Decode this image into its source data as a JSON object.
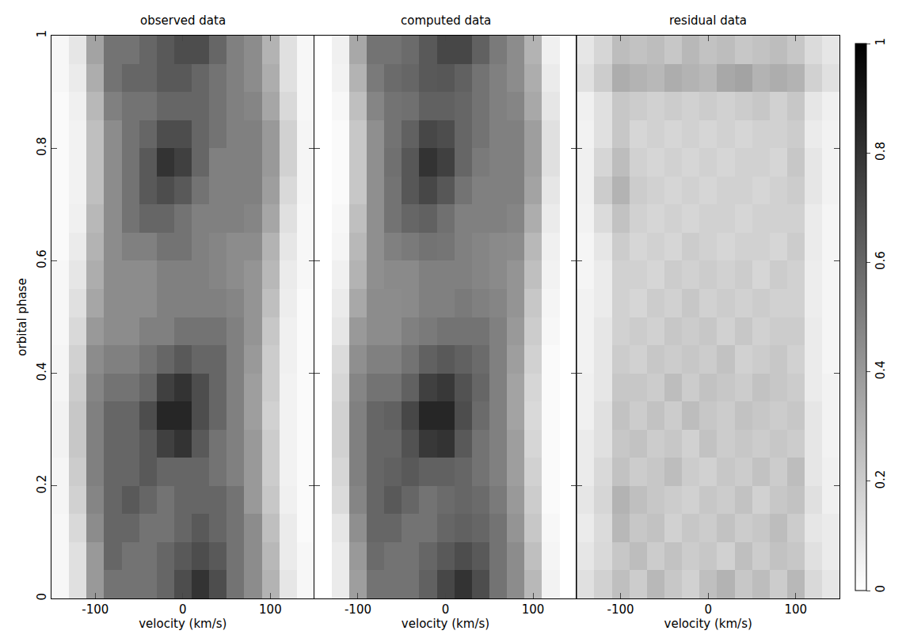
{
  "chart_data": [
    {
      "type": "heatmap",
      "title": "observed data",
      "x_label": "velocity (km/s)",
      "y_label": "orbital phase",
      "xlim": [
        -150,
        150
      ],
      "xticks": [
        -100,
        0,
        100
      ],
      "ylim": [
        0,
        1
      ],
      "yticks": [
        0,
        0.2,
        0.4,
        0.6,
        0.8,
        1
      ],
      "x": [
        -140,
        -120,
        -100,
        -80,
        -60,
        -40,
        -20,
        0,
        20,
        40,
        60,
        80,
        100,
        120,
        140
      ],
      "y": [
        0.025,
        0.075,
        0.125,
        0.175,
        0.225,
        0.275,
        0.325,
        0.375,
        0.425,
        0.475,
        0.525,
        0.575,
        0.625,
        0.675,
        0.725,
        0.775,
        0.825,
        0.875,
        0.925,
        0.975
      ],
      "z": [
        [
          0.03,
          0.12,
          0.4,
          0.55,
          0.55,
          0.55,
          0.6,
          0.7,
          0.8,
          0.7,
          0.55,
          0.45,
          0.3,
          0.1,
          0.03
        ],
        [
          0.03,
          0.12,
          0.4,
          0.6,
          0.55,
          0.55,
          0.6,
          0.65,
          0.7,
          0.65,
          0.55,
          0.45,
          0.28,
          0.08,
          0.03
        ],
        [
          0.03,
          0.15,
          0.45,
          0.6,
          0.6,
          0.55,
          0.55,
          0.6,
          0.65,
          0.6,
          0.55,
          0.45,
          0.25,
          0.08,
          0.02
        ],
        [
          0.04,
          0.18,
          0.48,
          0.6,
          0.65,
          0.6,
          0.55,
          0.6,
          0.6,
          0.6,
          0.55,
          0.4,
          0.22,
          0.06,
          0.02
        ],
        [
          0.04,
          0.2,
          0.5,
          0.6,
          0.6,
          0.65,
          0.6,
          0.6,
          0.6,
          0.55,
          0.5,
          0.4,
          0.2,
          0.05,
          0.02
        ],
        [
          0.05,
          0.22,
          0.5,
          0.6,
          0.6,
          0.65,
          0.75,
          0.8,
          0.65,
          0.55,
          0.5,
          0.4,
          0.2,
          0.05,
          0.02
        ],
        [
          0.05,
          0.22,
          0.5,
          0.6,
          0.6,
          0.7,
          0.85,
          0.85,
          0.7,
          0.6,
          0.5,
          0.38,
          0.18,
          0.05,
          0.02
        ],
        [
          0.04,
          0.2,
          0.48,
          0.55,
          0.55,
          0.6,
          0.75,
          0.8,
          0.7,
          0.6,
          0.5,
          0.38,
          0.2,
          0.05,
          0.02
        ],
        [
          0.04,
          0.18,
          0.45,
          0.5,
          0.5,
          0.55,
          0.6,
          0.65,
          0.6,
          0.6,
          0.5,
          0.4,
          0.2,
          0.06,
          0.02
        ],
        [
          0.03,
          0.15,
          0.4,
          0.45,
          0.45,
          0.5,
          0.5,
          0.55,
          0.55,
          0.55,
          0.5,
          0.42,
          0.22,
          0.06,
          0.02
        ],
        [
          0.03,
          0.12,
          0.35,
          0.45,
          0.45,
          0.45,
          0.5,
          0.5,
          0.5,
          0.5,
          0.48,
          0.42,
          0.25,
          0.07,
          0.02
        ],
        [
          0.03,
          0.1,
          0.32,
          0.45,
          0.45,
          0.45,
          0.5,
          0.5,
          0.5,
          0.48,
          0.45,
          0.42,
          0.28,
          0.08,
          0.03
        ],
        [
          0.02,
          0.08,
          0.3,
          0.45,
          0.5,
          0.5,
          0.55,
          0.55,
          0.5,
          0.48,
          0.45,
          0.45,
          0.3,
          0.1,
          0.03
        ],
        [
          0.02,
          0.06,
          0.28,
          0.45,
          0.55,
          0.6,
          0.6,
          0.55,
          0.5,
          0.5,
          0.5,
          0.48,
          0.35,
          0.12,
          0.03
        ],
        [
          0.02,
          0.05,
          0.25,
          0.45,
          0.55,
          0.65,
          0.7,
          0.65,
          0.55,
          0.5,
          0.5,
          0.5,
          0.38,
          0.15,
          0.04
        ],
        [
          0.02,
          0.05,
          0.25,
          0.45,
          0.55,
          0.65,
          0.8,
          0.75,
          0.6,
          0.5,
          0.5,
          0.5,
          0.4,
          0.18,
          0.04
        ],
        [
          0.02,
          0.05,
          0.25,
          0.45,
          0.55,
          0.6,
          0.7,
          0.7,
          0.6,
          0.55,
          0.5,
          0.5,
          0.4,
          0.18,
          0.04
        ],
        [
          0.02,
          0.06,
          0.28,
          0.5,
          0.55,
          0.55,
          0.6,
          0.6,
          0.6,
          0.55,
          0.5,
          0.48,
          0.35,
          0.15,
          0.03
        ],
        [
          0.03,
          0.08,
          0.32,
          0.55,
          0.6,
          0.6,
          0.65,
          0.65,
          0.6,
          0.55,
          0.5,
          0.45,
          0.32,
          0.12,
          0.03
        ],
        [
          0.03,
          0.1,
          0.36,
          0.55,
          0.55,
          0.6,
          0.65,
          0.7,
          0.7,
          0.6,
          0.5,
          0.45,
          0.3,
          0.12,
          0.03
        ]
      ]
    },
    {
      "type": "heatmap",
      "title": "computed data",
      "x_label": "velocity (km/s)",
      "tick_labels": "x",
      "xlim": [
        -150,
        150
      ],
      "xticks": [
        -100,
        0,
        100
      ],
      "ylim": [
        0,
        1
      ],
      "yticks": [
        0,
        0.2,
        0.4,
        0.6,
        0.8,
        1
      ],
      "x": [
        -140,
        -120,
        -100,
        -80,
        -60,
        -40,
        -20,
        0,
        20,
        40,
        60,
        80,
        100,
        120,
        140
      ],
      "y": [
        0.025,
        0.075,
        0.125,
        0.175,
        0.225,
        0.275,
        0.325,
        0.375,
        0.425,
        0.475,
        0.525,
        0.575,
        0.625,
        0.675,
        0.725,
        0.775,
        0.825,
        0.875,
        0.925,
        0.975
      ],
      "z": [
        [
          0.0,
          0.08,
          0.38,
          0.55,
          0.55,
          0.55,
          0.62,
          0.72,
          0.8,
          0.7,
          0.55,
          0.45,
          0.28,
          0.05,
          0.0
        ],
        [
          0.0,
          0.08,
          0.4,
          0.58,
          0.55,
          0.55,
          0.6,
          0.65,
          0.7,
          0.65,
          0.55,
          0.45,
          0.25,
          0.04,
          0.0
        ],
        [
          0.0,
          0.1,
          0.44,
          0.6,
          0.6,
          0.55,
          0.55,
          0.6,
          0.62,
          0.6,
          0.55,
          0.42,
          0.22,
          0.03,
          0.0
        ],
        [
          0.0,
          0.14,
          0.48,
          0.6,
          0.65,
          0.6,
          0.55,
          0.58,
          0.6,
          0.58,
          0.52,
          0.4,
          0.2,
          0.02,
          0.0
        ],
        [
          0.0,
          0.16,
          0.5,
          0.6,
          0.62,
          0.65,
          0.62,
          0.62,
          0.6,
          0.55,
          0.5,
          0.38,
          0.18,
          0.02,
          0.0
        ],
        [
          0.0,
          0.18,
          0.5,
          0.6,
          0.6,
          0.68,
          0.78,
          0.8,
          0.65,
          0.55,
          0.5,
          0.38,
          0.16,
          0.02,
          0.0
        ],
        [
          0.0,
          0.18,
          0.5,
          0.6,
          0.62,
          0.72,
          0.85,
          0.85,
          0.7,
          0.58,
          0.5,
          0.36,
          0.15,
          0.02,
          0.0
        ],
        [
          0.0,
          0.16,
          0.48,
          0.55,
          0.55,
          0.62,
          0.75,
          0.78,
          0.68,
          0.6,
          0.5,
          0.36,
          0.16,
          0.02,
          0.0
        ],
        [
          0.0,
          0.14,
          0.44,
          0.5,
          0.5,
          0.55,
          0.62,
          0.65,
          0.62,
          0.58,
          0.5,
          0.38,
          0.18,
          0.02,
          0.0
        ],
        [
          0.0,
          0.1,
          0.4,
          0.45,
          0.45,
          0.5,
          0.52,
          0.55,
          0.55,
          0.55,
          0.5,
          0.4,
          0.2,
          0.03,
          0.0
        ],
        [
          0.0,
          0.08,
          0.34,
          0.45,
          0.45,
          0.46,
          0.5,
          0.5,
          0.52,
          0.5,
          0.48,
          0.42,
          0.22,
          0.04,
          0.0
        ],
        [
          0.0,
          0.06,
          0.3,
          0.44,
          0.46,
          0.46,
          0.5,
          0.5,
          0.5,
          0.48,
          0.46,
          0.42,
          0.25,
          0.05,
          0.0
        ],
        [
          0.0,
          0.04,
          0.28,
          0.44,
          0.5,
          0.52,
          0.55,
          0.54,
          0.5,
          0.48,
          0.46,
          0.45,
          0.28,
          0.06,
          0.0
        ],
        [
          0.0,
          0.03,
          0.25,
          0.44,
          0.55,
          0.6,
          0.62,
          0.56,
          0.5,
          0.5,
          0.5,
          0.48,
          0.32,
          0.08,
          0.0
        ],
        [
          0.0,
          0.02,
          0.22,
          0.44,
          0.55,
          0.66,
          0.72,
          0.66,
          0.55,
          0.5,
          0.5,
          0.5,
          0.36,
          0.1,
          0.0
        ],
        [
          0.0,
          0.02,
          0.22,
          0.44,
          0.56,
          0.66,
          0.8,
          0.75,
          0.6,
          0.52,
          0.5,
          0.5,
          0.38,
          0.12,
          0.0
        ],
        [
          0.0,
          0.02,
          0.22,
          0.44,
          0.55,
          0.62,
          0.72,
          0.7,
          0.6,
          0.55,
          0.5,
          0.5,
          0.38,
          0.12,
          0.0
        ],
        [
          0.0,
          0.03,
          0.25,
          0.48,
          0.55,
          0.56,
          0.62,
          0.62,
          0.6,
          0.55,
          0.5,
          0.48,
          0.34,
          0.1,
          0.0
        ],
        [
          0.0,
          0.05,
          0.3,
          0.52,
          0.58,
          0.6,
          0.65,
          0.66,
          0.62,
          0.55,
          0.5,
          0.45,
          0.32,
          0.08,
          0.0
        ],
        [
          0.0,
          0.06,
          0.34,
          0.55,
          0.55,
          0.58,
          0.65,
          0.72,
          0.72,
          0.62,
          0.52,
          0.45,
          0.3,
          0.06,
          0.0
        ]
      ]
    },
    {
      "type": "heatmap",
      "title": "residual data",
      "x_label": "velocity (km/s)",
      "tick_labels": "x",
      "xlim": [
        -150,
        150
      ],
      "xticks": [
        -100,
        0,
        100
      ],
      "ylim": [
        0,
        1
      ],
      "yticks": [
        0,
        0.2,
        0.4,
        0.6,
        0.8,
        1
      ],
      "colorbar": {
        "range": [
          0,
          1
        ],
        "ticks": [
          0,
          0.2,
          0.4,
          0.6,
          0.8,
          1
        ]
      },
      "x": [
        -140,
        -120,
        -100,
        -80,
        -60,
        -40,
        -20,
        0,
        20,
        40,
        60,
        80,
        100,
        120,
        140
      ],
      "y": [
        0.025,
        0.075,
        0.125,
        0.175,
        0.225,
        0.275,
        0.325,
        0.375,
        0.425,
        0.475,
        0.525,
        0.575,
        0.625,
        0.675,
        0.725,
        0.775,
        0.825,
        0.875,
        0.925,
        0.975
      ],
      "z": [
        [
          0.12,
          0.18,
          0.25,
          0.2,
          0.28,
          0.22,
          0.18,
          0.25,
          0.3,
          0.22,
          0.26,
          0.2,
          0.28,
          0.15,
          0.1
        ],
        [
          0.1,
          0.15,
          0.22,
          0.26,
          0.2,
          0.24,
          0.2,
          0.22,
          0.18,
          0.25,
          0.2,
          0.24,
          0.22,
          0.12,
          0.08
        ],
        [
          0.08,
          0.14,
          0.28,
          0.22,
          0.24,
          0.18,
          0.22,
          0.2,
          0.24,
          0.2,
          0.22,
          0.26,
          0.2,
          0.1,
          0.08
        ],
        [
          0.1,
          0.16,
          0.3,
          0.25,
          0.22,
          0.2,
          0.18,
          0.22,
          0.2,
          0.24,
          0.18,
          0.22,
          0.24,
          0.12,
          0.06
        ],
        [
          0.08,
          0.15,
          0.24,
          0.2,
          0.22,
          0.26,
          0.2,
          0.18,
          0.22,
          0.2,
          0.24,
          0.2,
          0.26,
          0.1,
          0.06
        ],
        [
          0.08,
          0.12,
          0.22,
          0.24,
          0.2,
          0.22,
          0.18,
          0.24,
          0.2,
          0.22,
          0.2,
          0.22,
          0.2,
          0.1,
          0.05
        ],
        [
          0.06,
          0.12,
          0.24,
          0.2,
          0.24,
          0.2,
          0.26,
          0.22,
          0.2,
          0.24,
          0.22,
          0.2,
          0.22,
          0.1,
          0.05
        ],
        [
          0.06,
          0.1,
          0.22,
          0.22,
          0.2,
          0.26,
          0.2,
          0.24,
          0.22,
          0.2,
          0.24,
          0.22,
          0.2,
          0.08,
          0.05
        ],
        [
          0.05,
          0.1,
          0.2,
          0.18,
          0.22,
          0.2,
          0.22,
          0.2,
          0.24,
          0.18,
          0.2,
          0.22,
          0.18,
          0.08,
          0.04
        ],
        [
          0.05,
          0.1,
          0.18,
          0.2,
          0.18,
          0.22,
          0.2,
          0.22,
          0.18,
          0.22,
          0.18,
          0.2,
          0.2,
          0.08,
          0.04
        ],
        [
          0.05,
          0.08,
          0.18,
          0.16,
          0.2,
          0.18,
          0.22,
          0.18,
          0.2,
          0.18,
          0.2,
          0.18,
          0.18,
          0.07,
          0.04
        ],
        [
          0.04,
          0.08,
          0.18,
          0.18,
          0.16,
          0.2,
          0.18,
          0.2,
          0.18,
          0.2,
          0.16,
          0.2,
          0.18,
          0.07,
          0.04
        ],
        [
          0.04,
          0.1,
          0.2,
          0.16,
          0.18,
          0.16,
          0.2,
          0.18,
          0.16,
          0.18,
          0.18,
          0.16,
          0.2,
          0.08,
          0.04
        ],
        [
          0.05,
          0.14,
          0.24,
          0.18,
          0.16,
          0.18,
          0.16,
          0.18,
          0.18,
          0.16,
          0.18,
          0.18,
          0.18,
          0.08,
          0.04
        ],
        [
          0.06,
          0.2,
          0.3,
          0.2,
          0.18,
          0.16,
          0.18,
          0.16,
          0.18,
          0.18,
          0.16,
          0.18,
          0.2,
          0.1,
          0.05
        ],
        [
          0.06,
          0.16,
          0.26,
          0.18,
          0.16,
          0.18,
          0.16,
          0.18,
          0.16,
          0.18,
          0.18,
          0.16,
          0.22,
          0.1,
          0.05
        ],
        [
          0.05,
          0.12,
          0.22,
          0.16,
          0.18,
          0.16,
          0.18,
          0.16,
          0.18,
          0.16,
          0.18,
          0.18,
          0.2,
          0.08,
          0.05
        ],
        [
          0.06,
          0.12,
          0.22,
          0.2,
          0.18,
          0.2,
          0.18,
          0.2,
          0.18,
          0.2,
          0.22,
          0.18,
          0.22,
          0.1,
          0.06
        ],
        [
          0.12,
          0.2,
          0.32,
          0.3,
          0.28,
          0.32,
          0.3,
          0.28,
          0.34,
          0.36,
          0.3,
          0.32,
          0.3,
          0.18,
          0.12
        ],
        [
          0.1,
          0.16,
          0.26,
          0.24,
          0.26,
          0.22,
          0.28,
          0.24,
          0.26,
          0.22,
          0.24,
          0.26,
          0.22,
          0.14,
          0.1
        ]
      ]
    }
  ]
}
